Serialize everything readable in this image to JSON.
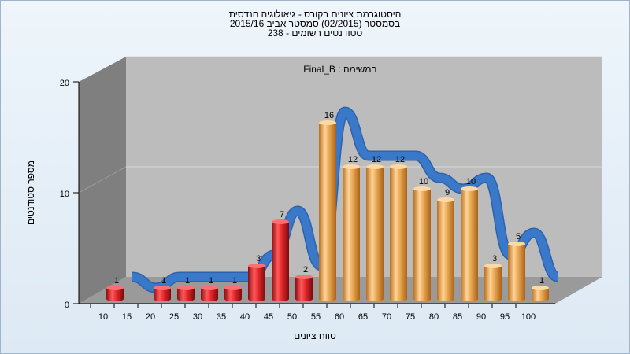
{
  "header": {
    "line1": "היסטוגרמת ציונים בקורס - גיאולוגיה הנדסית",
    "line2": "בסמסטר  (02/2015)  סמסטר אביב 2015/16",
    "line3": "סטודנטים רשומים - 238"
  },
  "chart_data": {
    "type": "bar",
    "title": "במשימה : Final_B",
    "xlabel": "טווח ציונים",
    "ylabel": "מספר סטודנטים",
    "ylim": [
      0,
      20
    ],
    "yticks": [
      "0",
      "10",
      "20"
    ],
    "x_tick_labels": [
      "10",
      "15",
      "20",
      "25",
      "30",
      "35",
      "40",
      "45",
      "50",
      "55",
      "60",
      "65",
      "70",
      "75",
      "80",
      "85",
      "90",
      "95",
      "100"
    ],
    "categories": [
      "10",
      "15",
      "20",
      "25",
      "30",
      "35",
      "40",
      "45",
      "50",
      "55",
      "60",
      "65",
      "70",
      "75",
      "80",
      "85",
      "90",
      "95",
      "100"
    ],
    "values": [
      1,
      0,
      1,
      1,
      1,
      1,
      3,
      7,
      2,
      16,
      12,
      12,
      12,
      10,
      9,
      10,
      3,
      5,
      1
    ],
    "bar_colors": [
      "red",
      "none",
      "red",
      "red",
      "red",
      "red",
      "red",
      "red",
      "red",
      "orange",
      "orange",
      "orange",
      "orange",
      "orange",
      "orange",
      "orange",
      "orange",
      "orange",
      "orange"
    ],
    "data_labels": [
      "1",
      "",
      "1",
      "1",
      "1",
      "1",
      "3",
      "7",
      "2",
      "16",
      "12",
      "12",
      "12",
      "10",
      "9",
      "10",
      "3",
      "5",
      "1"
    ],
    "trend_line": "smoothed blue ribbon following bar heights",
    "colors": {
      "red": "#e0262a",
      "orange": "#e7a650",
      "trend": "#3a78c9",
      "back_wall": "#bcbcbc",
      "side_wall": "#7f7f7f"
    },
    "grid": true,
    "legend": "none",
    "style": "3d"
  }
}
